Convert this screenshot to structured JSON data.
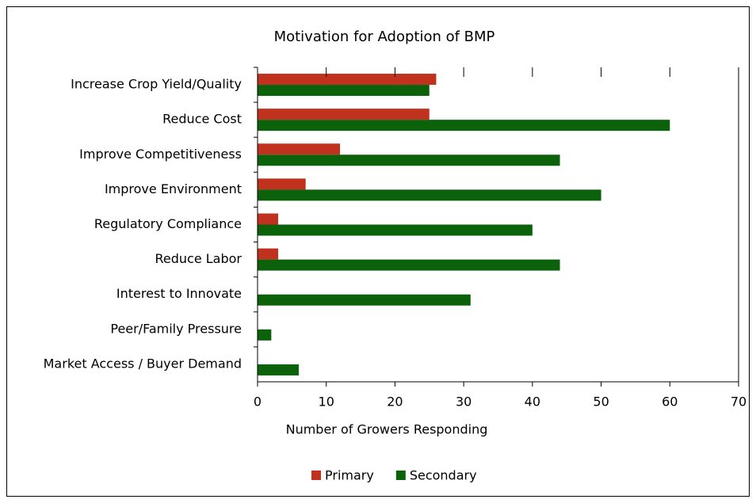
{
  "chart_data": {
    "type": "hbar",
    "title": "Motivation for Adoption of BMP",
    "categories": [
      "Increase Crop Yield/Quality",
      "Reduce Cost",
      "Improve Competitiveness",
      "Improve Environment",
      "Regulatory Compliance",
      "Reduce Labor",
      "Interest to Innovate",
      "Peer/Family Pressure",
      "Market Access / Buyer Demand"
    ],
    "series": [
      {
        "name": "Primary",
        "color": "#c0321e",
        "values": [
          26,
          25,
          12,
          7,
          3,
          3,
          0,
          0,
          0
        ]
      },
      {
        "name": "Secondary",
        "color": "#0b620b",
        "values": [
          25,
          60,
          44,
          50,
          40,
          44,
          31,
          2,
          6
        ]
      }
    ],
    "xlabel": "Number of Growers Responding",
    "xlim": [
      0,
      70
    ],
    "xticks": [
      0,
      10,
      20,
      30,
      40,
      50,
      60,
      70
    ],
    "legend": "bottom"
  }
}
